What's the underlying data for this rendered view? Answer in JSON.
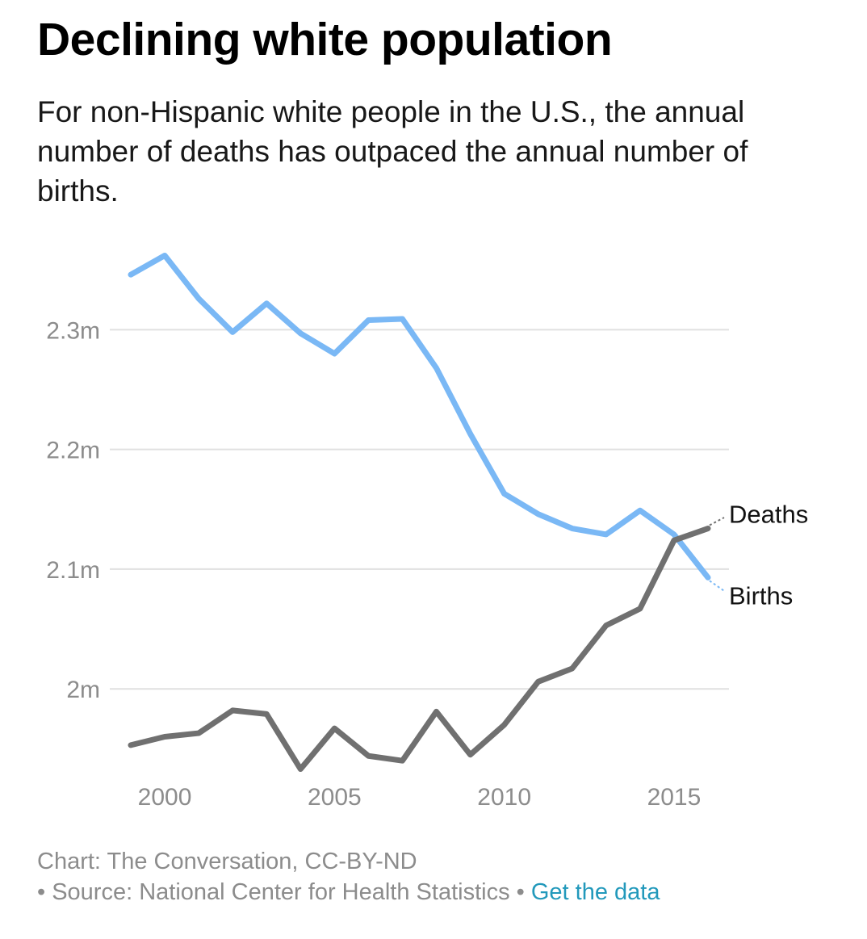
{
  "header": {
    "title": "Declining white population",
    "subtitle": "For non-Hispanic white people in the U.S., the annual number of deaths has outpaced the annual number of births."
  },
  "footer": {
    "credit": "Chart: The Conversation, CC-BY-ND",
    "source_prefix": "• Source: National Center for Health Statistics •",
    "data_link": "Get the data"
  },
  "colors": {
    "births": "#7ab8f5",
    "deaths": "#707070",
    "grid": "#e0e0e0",
    "tick": "#8c8c8c",
    "link": "#2299bb"
  },
  "chart_data": {
    "type": "line",
    "title": "Declining white population",
    "xlabel": "",
    "ylabel": "",
    "x": [
      1999,
      2000,
      2001,
      2002,
      2003,
      2004,
      2005,
      2006,
      2007,
      2008,
      2009,
      2010,
      2011,
      2012,
      2013,
      2014,
      2015,
      2016
    ],
    "xlim": [
      1999,
      2016
    ],
    "ylim": [
      1.93,
      2.365
    ],
    "x_ticks": [
      2000,
      2005,
      2010,
      2015
    ],
    "x_tick_labels": [
      "2000",
      "2005",
      "2010",
      "2015"
    ],
    "y_ticks": [
      2.0,
      2.1,
      2.2,
      2.3
    ],
    "y_tick_labels": [
      "2m",
      "2.1m",
      "2.2m",
      "2.3m"
    ],
    "grid": true,
    "series": [
      {
        "name": "Births",
        "label": "Births",
        "values": [
          2.346,
          2.362,
          2.326,
          2.298,
          2.322,
          2.297,
          2.28,
          2.308,
          2.309,
          2.268,
          2.213,
          2.163,
          2.146,
          2.134,
          2.129,
          2.149,
          2.129,
          2.093
        ]
      },
      {
        "name": "Deaths",
        "label": "Deaths",
        "values": [
          1.953,
          1.96,
          1.963,
          1.982,
          1.979,
          1.933,
          1.967,
          1.944,
          1.94,
          1.981,
          1.945,
          1.97,
          2.006,
          2.017,
          2.053,
          2.067,
          2.124,
          2.134
        ]
      }
    ]
  }
}
